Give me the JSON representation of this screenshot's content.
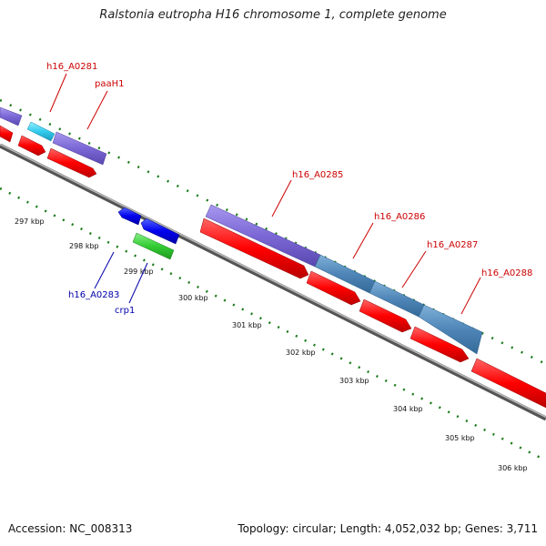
{
  "header": {
    "title": "Ralstonia eutropha H16 chromosome 1, complete genome"
  },
  "footer": {
    "accession": "Accession: NC_008313",
    "summary": "Topology: circular; Length: 4,052,032 bp; Genes: 3,711"
  },
  "scale": {
    "ticks": [
      "297 kbp",
      "298 kbp",
      "299 kbp",
      "300 kbp",
      "301 kbp",
      "302 kbp",
      "303 kbp",
      "304 kbp",
      "305 kbp",
      "306 kbp"
    ]
  },
  "genes": [
    {
      "label": "h16_A0281",
      "color": "#cc0000"
    },
    {
      "label": "paaH1",
      "color": "#cc0000"
    },
    {
      "label": "h16_A0285",
      "color": "#cc0000"
    },
    {
      "label": "h16_A0286",
      "color": "#cc0000"
    },
    {
      "label": "h16_A0287",
      "color": "#cc0000"
    },
    {
      "label": "h16_A0288",
      "color": "#cc0000"
    },
    {
      "label": "h16_A0283",
      "color": "#0000aa"
    },
    {
      "label": "crp1",
      "color": "#0000aa"
    }
  ],
  "colors": {
    "forward_cds": "#ff0000",
    "reverse_cds": "#0000ee",
    "cog_purple": "#7b68d6",
    "cog_steelblue": "#4f86b8",
    "cog_cyan": "#33ccee",
    "cog_green": "#33cc33",
    "backbone": "#888888",
    "gc_tick": "#1a7a1a"
  }
}
